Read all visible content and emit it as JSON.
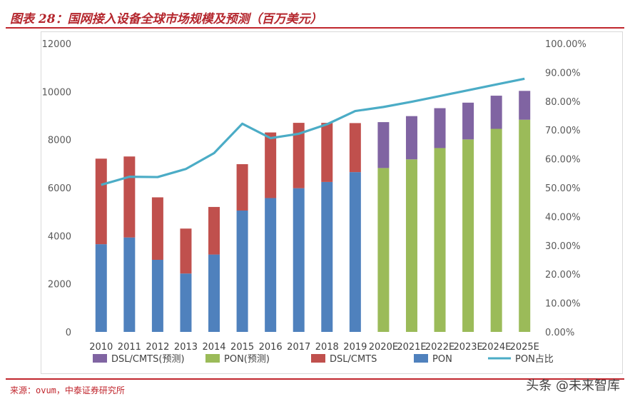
{
  "title": "图表 28：国网接入设备全球市场规模及预测（百万美元）",
  "source": "来源：ovum，中泰证券研究所",
  "watermark": "头条 @未来智库",
  "colors": {
    "pon": "#4f81bd",
    "dsl": "#c0504d",
    "pon_forecast": "#9bbb59",
    "dsl_forecast": "#8064a2",
    "pon_share": "#4bacc6",
    "brand_red": "#c0262d"
  },
  "chart_data": {
    "type": "bar",
    "stacked": true,
    "categories": [
      "2010",
      "2011",
      "2012",
      "2013",
      "2014",
      "2015",
      "2016",
      "2017",
      "2018",
      "2019",
      "2020E",
      "2021E",
      "2022E",
      "2023E",
      "2024E",
      "2025E"
    ],
    "series": [
      {
        "name": "PON",
        "axis": "left",
        "values": [
          3650,
          3930,
          3000,
          2430,
          3220,
          5050,
          5570,
          5980,
          6240,
          6650,
          null,
          null,
          null,
          null,
          null,
          null
        ]
      },
      {
        "name": "DSL/CMTS",
        "axis": "left",
        "values": [
          3560,
          3370,
          2600,
          1870,
          1980,
          1930,
          2730,
          2720,
          2460,
          2040,
          null,
          null,
          null,
          null,
          null,
          null
        ]
      },
      {
        "name": "PON(预测)",
        "axis": "left",
        "values": [
          null,
          null,
          null,
          null,
          null,
          null,
          null,
          null,
          null,
          null,
          6820,
          7180,
          7650,
          8010,
          8450,
          8830
        ]
      },
      {
        "name": "DSL/CMTS(预测)",
        "axis": "left",
        "values": [
          null,
          null,
          null,
          null,
          null,
          null,
          null,
          null,
          null,
          null,
          1910,
          1800,
          1660,
          1530,
          1380,
          1200
        ]
      },
      {
        "name": "PON占比",
        "type": "line",
        "axis": "right",
        "values": [
          0.51,
          0.538,
          0.537,
          0.565,
          0.62,
          0.722,
          0.672,
          0.687,
          0.72,
          0.766,
          0.78,
          0.798,
          0.818,
          0.838,
          0.858,
          0.878
        ]
      }
    ],
    "yTicks": [
      "0",
      "2000",
      "4000",
      "6000",
      "8000",
      "10000",
      "12000"
    ],
    "y2Ticks": [
      "0.00%",
      "10.00%",
      "20.00%",
      "30.00%",
      "40.00%",
      "50.00%",
      "60.00%",
      "70.00%",
      "80.00%",
      "90.00%",
      "100.00%"
    ],
    "ylim": [
      0,
      12000
    ],
    "y2lim": [
      0,
      1
    ],
    "legend": [
      {
        "label": "DSL/CMTS(预测)",
        "kind": "box",
        "color_key": "dsl_forecast"
      },
      {
        "label": "PON(预测)",
        "kind": "box",
        "color_key": "pon_forecast"
      },
      {
        "label": "DSL/CMTS",
        "kind": "box",
        "color_key": "dsl"
      },
      {
        "label": "PON",
        "kind": "box",
        "color_key": "pon"
      },
      {
        "label": "PON占比",
        "kind": "line",
        "color_key": "pon_share"
      }
    ],
    "legend_position": "bottom",
    "grid": false
  }
}
